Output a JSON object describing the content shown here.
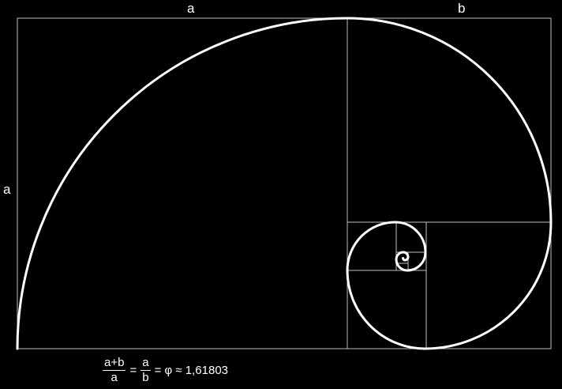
{
  "labels": {
    "top_a": "a",
    "top_b": "b",
    "left_a": "a"
  },
  "formula": {
    "frac1_num": "a+b",
    "frac1_den": "a",
    "eq1": "=",
    "frac2_num": "a",
    "frac2_den": "b",
    "rest": "= φ ≈ 1,61803"
  },
  "colors": {
    "background": "#000000",
    "lines": "#ffffff",
    "grid": "#bfbfbf"
  }
}
